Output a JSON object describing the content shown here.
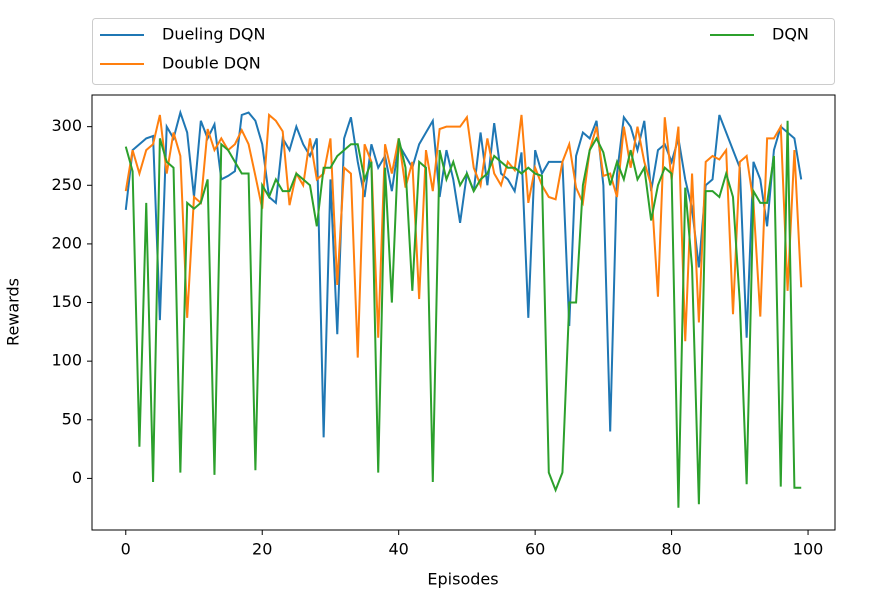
{
  "chart_data": {
    "type": "line",
    "xlabel": "Episodes",
    "ylabel": "Rewards",
    "x": [
      0,
      1,
      2,
      3,
      4,
      5,
      6,
      7,
      8,
      9,
      10,
      11,
      12,
      13,
      14,
      15,
      16,
      17,
      18,
      19,
      20,
      21,
      22,
      23,
      24,
      25,
      26,
      27,
      28,
      29,
      30,
      31,
      32,
      33,
      34,
      35,
      36,
      37,
      38,
      39,
      40,
      41,
      42,
      43,
      44,
      45,
      46,
      47,
      48,
      49,
      50,
      51,
      52,
      53,
      54,
      55,
      56,
      57,
      58,
      59,
      60,
      61,
      62,
      63,
      64,
      65,
      66,
      67,
      68,
      69,
      70,
      71,
      72,
      73,
      74,
      75,
      76,
      77,
      78,
      79,
      80,
      81,
      82,
      83,
      84,
      85,
      86,
      87,
      88,
      89,
      90,
      91,
      92,
      93,
      94,
      95,
      96,
      97,
      98,
      99
    ],
    "series": [
      {
        "name": "Dueling DQN",
        "color": "#1f77b4",
        "values": [
          229,
          280,
          285,
          290,
          292,
          135,
          300,
          290,
          312,
          295,
          240,
          305,
          290,
          302,
          255,
          258,
          262,
          310,
          312,
          305,
          285,
          240,
          235,
          290,
          280,
          300,
          285,
          275,
          290,
          35,
          255,
          123,
          290,
          308,
          270,
          240,
          285,
          265,
          275,
          245,
          285,
          275,
          265,
          285,
          295,
          305,
          240,
          280,
          255,
          218,
          260,
          245,
          295,
          250,
          303,
          260,
          255,
          245,
          278,
          137,
          280,
          260,
          270,
          270,
          270,
          130,
          275,
          295,
          290,
          305,
          250,
          40,
          260,
          308,
          300,
          280,
          305,
          245,
          280,
          285,
          270,
          290,
          255,
          230,
          180,
          250,
          255,
          310,
          295,
          280,
          265,
          120,
          270,
          255,
          215,
          280,
          300,
          295,
          290,
          255
        ]
      },
      {
        "name": "Double DQN",
        "color": "#ff7f0e",
        "values": [
          245,
          280,
          260,
          280,
          285,
          310,
          260,
          295,
          275,
          137,
          240,
          235,
          298,
          280,
          290,
          280,
          285,
          297,
          285,
          258,
          230,
          310,
          305,
          296,
          233,
          260,
          250,
          290,
          255,
          260,
          290,
          165,
          265,
          260,
          103,
          285,
          270,
          120,
          285,
          260,
          290,
          248,
          270,
          153,
          280,
          245,
          298,
          300,
          300,
          300,
          308,
          265,
          250,
          290,
          260,
          250,
          270,
          263,
          310,
          235,
          265,
          250,
          240,
          238,
          270,
          285,
          248,
          235,
          280,
          300,
          258,
          260,
          240,
          300,
          265,
          300,
          270,
          250,
          155,
          308,
          255,
          300,
          117,
          260,
          133,
          270,
          275,
          272,
          280,
          140,
          270,
          275,
          235,
          138,
          290,
          290,
          300,
          160,
          280,
          163
        ]
      },
      {
        "name": "DQN",
        "color": "#2ca02c",
        "values": [
          283,
          262,
          27,
          235,
          -3,
          290,
          270,
          265,
          5,
          235,
          230,
          235,
          255,
          3,
          285,
          280,
          270,
          260,
          260,
          7,
          250,
          240,
          255,
          245,
          245,
          260,
          255,
          250,
          215,
          265,
          265,
          275,
          280,
          285,
          285,
          255,
          270,
          5,
          265,
          150,
          290,
          265,
          160,
          270,
          265,
          -3,
          280,
          255,
          270,
          250,
          260,
          245,
          255,
          260,
          275,
          270,
          265,
          265,
          260,
          265,
          260,
          258,
          5,
          -10,
          5,
          150,
          150,
          250,
          280,
          290,
          278,
          250,
          270,
          255,
          280,
          255,
          265,
          220,
          250,
          265,
          260,
          -25,
          248,
          180,
          -22,
          245,
          245,
          240,
          260,
          240,
          150,
          -5,
          245,
          235,
          235,
          275,
          -7,
          305,
          -8,
          -8
        ]
      }
    ],
    "xlim": [
      -4.95,
      103.95
    ],
    "xticks": [
      0,
      20,
      40,
      60,
      80,
      100
    ],
    "ylim": [
      -44,
      327
    ],
    "yticks": [
      0,
      50,
      100,
      150,
      200,
      250,
      300
    ],
    "legend": "top-expand"
  }
}
